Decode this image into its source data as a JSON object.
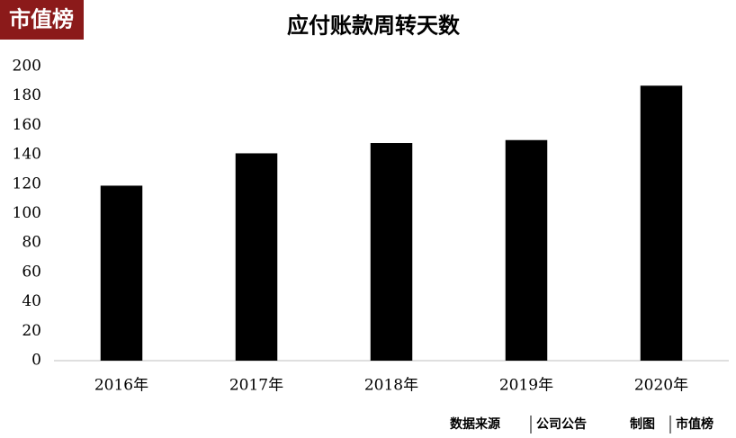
{
  "brand": "市值榜",
  "chart_data": {
    "type": "bar",
    "title": "应付账款周转天数",
    "categories": [
      "2016年",
      "2017年",
      "2018年",
      "2019年",
      "2020年"
    ],
    "values": [
      119,
      141,
      148,
      150,
      187
    ],
    "color": "#000000",
    "ylim": [
      0,
      200
    ],
    "yticks": [
      0,
      20,
      40,
      60,
      80,
      100,
      120,
      140,
      160,
      180,
      200
    ],
    "grid": false
  },
  "footer": {
    "source_label": "数据来源",
    "source": "公司公告",
    "maker_label": "制图",
    "maker": "市值榜"
  }
}
